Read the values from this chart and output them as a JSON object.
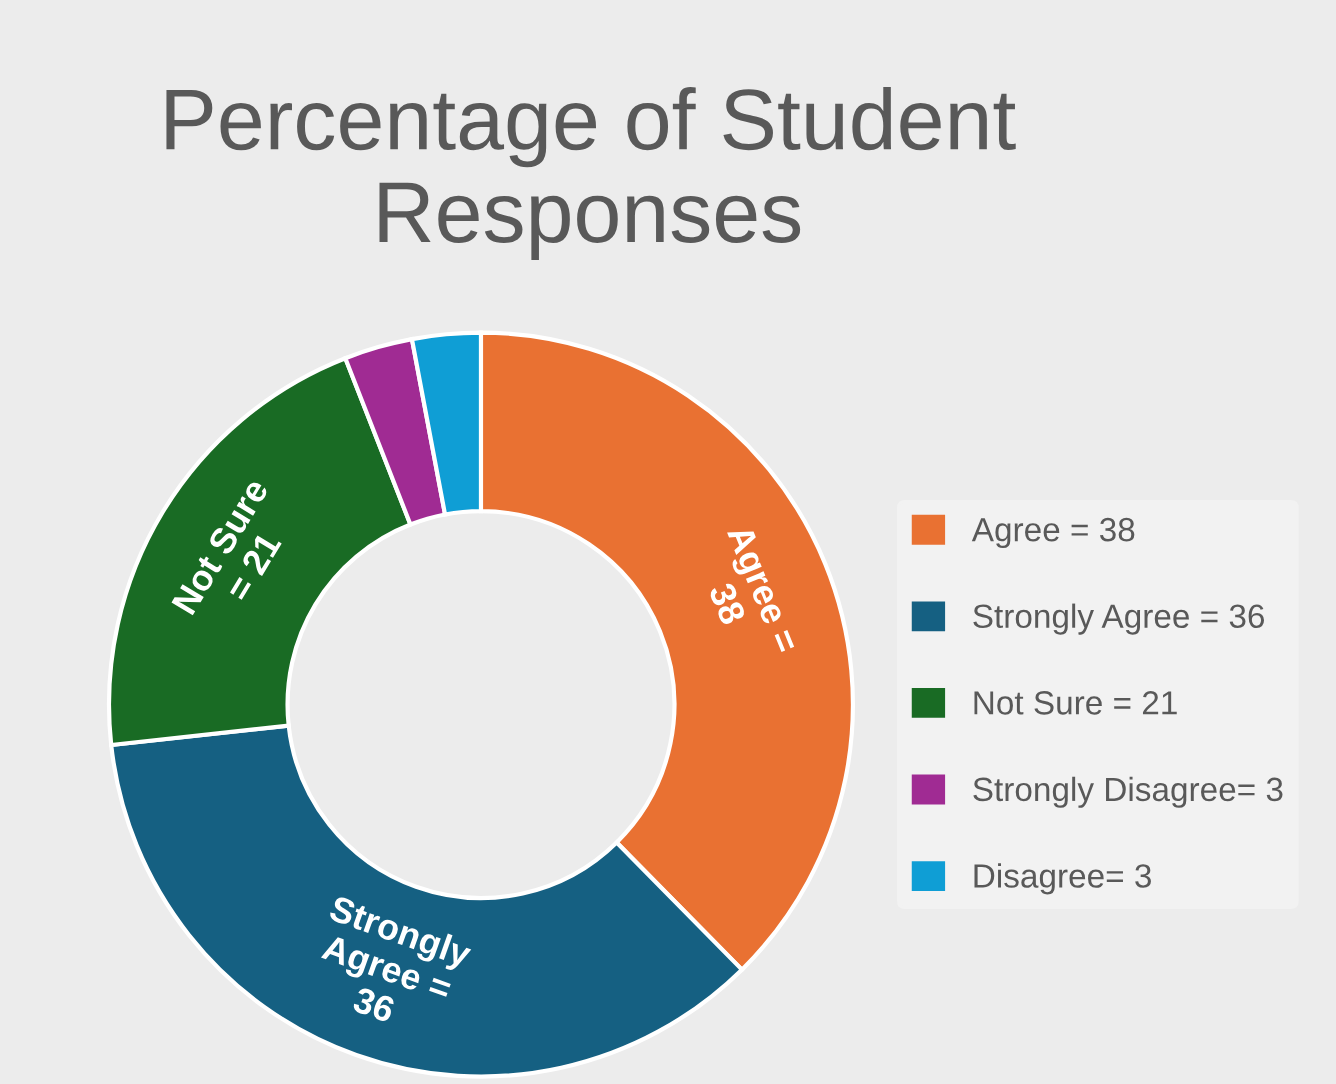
{
  "chart_data": {
    "type": "donut",
    "title": "Percentage of Student Responses",
    "categories": [
      "Agree = 38",
      "Strongly Agree = 36",
      "Not Sure = 21",
      "Strongly Disagree= 3",
      "Disagree= 3"
    ],
    "values": [
      38,
      36,
      21,
      3,
      3
    ],
    "colors": [
      "#e97132",
      "#156082",
      "#196b24",
      "#a02b93",
      "#0f9ed5"
    ],
    "value_labels": [
      "Agree =\n38",
      "Strongly\nAgree =\n36",
      "Not Sure\n= 21",
      null,
      null
    ],
    "legend": "right"
  }
}
